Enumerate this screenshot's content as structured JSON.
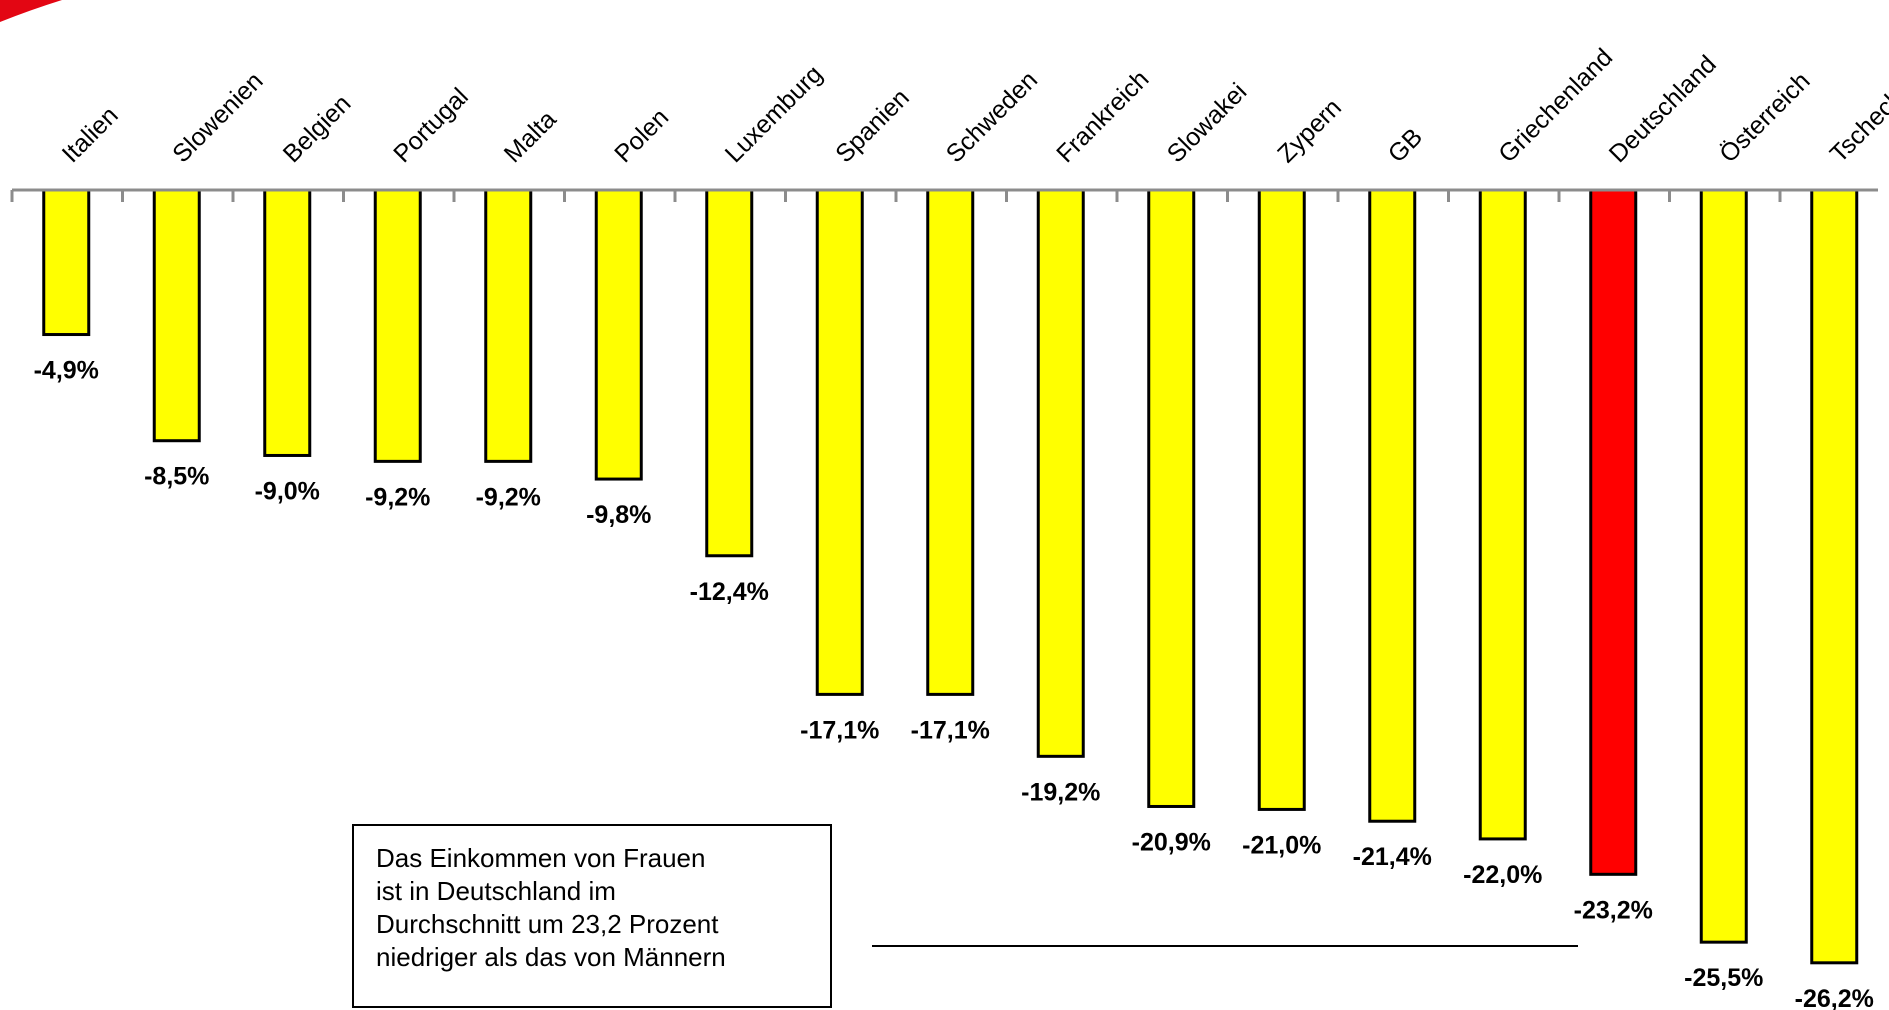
{
  "chart_data": {
    "type": "bar",
    "categories": [
      "Italien",
      "Slowenien",
      "Belgien",
      "Portugal",
      "Malta",
      "Polen",
      "Luxemburg",
      "Spanien",
      "Schweden",
      "Frankreich",
      "Slowakei",
      "Zypern",
      "GB",
      "Griechenland",
      "Deutschland",
      "Österreich",
      "Tschechien"
    ],
    "values": [
      -4.9,
      -8.5,
      -9.0,
      -9.2,
      -9.2,
      -9.8,
      -12.4,
      -17.1,
      -17.1,
      -19.2,
      -20.9,
      -21.0,
      -21.4,
      -22.0,
      -23.2,
      -25.5,
      -26.2
    ],
    "data_labels": [
      "-4,9%",
      "-8,5%",
      "-9,0%",
      "-9,2%",
      "-9,2%",
      "-9,8%",
      "-12,4%",
      "-17,1%",
      "-17,1%",
      "-19,2%",
      "-20,9%",
      "-21,0%",
      "-21,4%",
      "-22,0%",
      "-23,2%",
      "-25,5%",
      "-26,2%"
    ],
    "ylim": [
      -27.8,
      0
    ],
    "grid": false,
    "bar_color": "#ffff00",
    "highlight_color": "#ff0000",
    "highlight_category": "Deutschland",
    "annotation": {
      "lines": [
        "Das Einkommen von Frauen",
        "ist in Deutschland im",
        "Durchschnitt um 23,2 Prozent",
        "niedriger als das von Männern"
      ]
    }
  }
}
